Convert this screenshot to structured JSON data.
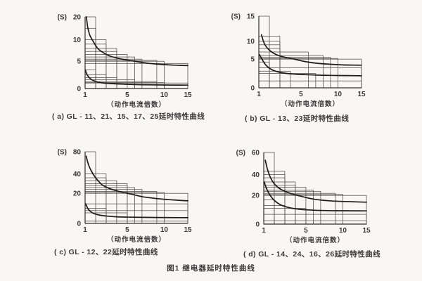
{
  "page": {
    "figure_caption": "图1  继电器延时特性曲线",
    "background": "#f9f7f6",
    "grid_color": "#4d4d4d",
    "axis_color": "#2b2b2b",
    "curve_color": "#1a1a1a",
    "text_color": "#3a3a3a"
  },
  "chart_data": [
    {
      "id": "a",
      "type": "line",
      "caption": "( a) GL - 11、21、15、17、25延时特性曲线",
      "xlabel": "（动作电流倍数）",
      "ylabel": "(S)",
      "xlim": [
        1,
        15
      ],
      "ylim": [
        0,
        20
      ],
      "x_ticks": {
        "values": [
          1,
          5,
          10,
          15
        ],
        "fractions": [
          0,
          0.41,
          0.77,
          1
        ]
      },
      "y_ticks": {
        "values": [
          0,
          5,
          10,
          20
        ],
        "fractions": [
          0,
          0.38,
          0.68,
          1
        ]
      },
      "legend": "none",
      "grid": "tolerance-boxes",
      "boxes": [
        [
          2,
          20
        ],
        [
          2,
          15
        ],
        [
          3,
          10
        ],
        [
          3,
          9
        ],
        [
          4,
          8
        ],
        [
          4,
          7.3
        ],
        [
          5,
          6.6
        ],
        [
          6,
          6
        ],
        [
          7,
          5.5
        ],
        [
          9,
          5.2
        ],
        [
          10,
          5
        ],
        [
          15,
          4.6
        ],
        [
          2,
          3.4
        ],
        [
          3,
          2.5
        ],
        [
          4,
          2
        ],
        [
          6,
          1.6
        ],
        [
          9,
          1.25
        ],
        [
          10,
          1.1
        ],
        [
          15,
          1
        ]
      ],
      "series": [
        {
          "name": "upper-limit-curve",
          "points": [
            [
              1.12,
              20
            ],
            [
              1.25,
              15.5
            ],
            [
              1.45,
              12
            ],
            [
              1.8,
              9.5
            ],
            [
              2.2,
              8
            ],
            [
              2.8,
              6.9
            ],
            [
              3.5,
              6.1
            ],
            [
              4.5,
              5.5
            ],
            [
              6,
              5
            ],
            [
              8,
              4.6
            ],
            [
              10,
              4.4
            ],
            [
              12,
              4.3
            ],
            [
              15,
              4.2
            ]
          ]
        },
        {
          "name": "lower-limit-curve",
          "points": [
            [
              1.02,
              3.4
            ],
            [
              1.2,
              2.5
            ],
            [
              1.5,
              1.8
            ],
            [
              2,
              1.3
            ],
            [
              2.6,
              1.05
            ],
            [
              3.5,
              0.9
            ],
            [
              5,
              0.78
            ],
            [
              7,
              0.7
            ],
            [
              10,
              0.65
            ],
            [
              15,
              0.62
            ]
          ]
        }
      ]
    },
    {
      "id": "b",
      "type": "line",
      "caption": "( b) GL - 13、23延时特性曲线",
      "xlabel": "（动作电流倍数）",
      "ylabel": "(S)",
      "xlim": [
        1,
        15
      ],
      "ylim": [
        0,
        15
      ],
      "x_ticks": {
        "values": [
          1,
          5,
          10,
          15
        ],
        "fractions": [
          0,
          0.41,
          0.77,
          1
        ]
      },
      "y_ticks": {
        "values": [
          0,
          5,
          10,
          15
        ],
        "fractions": [
          0,
          0.4,
          0.65,
          1
        ]
      },
      "legend": "none",
      "grid": "tolerance-boxes",
      "boxes": [
        [
          2,
          15
        ],
        [
          3,
          11
        ],
        [
          3,
          10
        ],
        [
          3,
          9
        ],
        [
          3,
          8
        ],
        [
          6,
          7
        ],
        [
          8,
          6
        ],
        [
          9,
          5.5
        ],
        [
          10,
          5.2
        ],
        [
          15,
          5
        ],
        [
          15,
          3.5
        ],
        [
          2,
          4.5
        ],
        [
          4,
          2.9
        ],
        [
          7,
          2.5
        ],
        [
          15,
          1.2
        ]
      ],
      "series": [
        {
          "name": "upper-limit-curve",
          "points": [
            [
              1.25,
              11.3
            ],
            [
              1.5,
              9.5
            ],
            [
              1.9,
              7.8
            ],
            [
              2.5,
              6.5
            ],
            [
              3.2,
              5.7
            ],
            [
              4.2,
              5.1
            ],
            [
              5.5,
              4.6
            ],
            [
              7,
              4.3
            ],
            [
              9,
              4.1
            ],
            [
              11,
              4.0
            ],
            [
              15,
              3.95
            ]
          ]
        },
        {
          "name": "lower-limit-curve",
          "points": [
            [
              1.05,
              6.3
            ],
            [
              1.3,
              5.0
            ],
            [
              1.7,
              3.9
            ],
            [
              2.3,
              3.1
            ],
            [
              3,
              2.7
            ],
            [
              4,
              2.45
            ],
            [
              5.5,
              2.3
            ],
            [
              7.5,
              2.2
            ],
            [
              10,
              2.15
            ],
            [
              15,
              2.1
            ]
          ]
        }
      ]
    },
    {
      "id": "c",
      "type": "line",
      "caption": "( c) GL - 12、22延时特性曲线",
      "xlabel": "（动作电流倍数）",
      "ylabel": "(S)",
      "xlim": [
        1,
        15
      ],
      "ylim": [
        0,
        80
      ],
      "x_ticks": {
        "values": [
          1,
          5,
          10,
          15
        ],
        "fractions": [
          0,
          0.41,
          0.77,
          1
        ]
      },
      "y_ticks": {
        "values": [
          0,
          20,
          40,
          80
        ],
        "fractions": [
          0,
          0.42,
          0.69,
          1
        ]
      },
      "legend": "none",
      "grid": "tolerance-boxes",
      "boxes": [
        [
          2,
          80
        ],
        [
          3,
          40
        ],
        [
          3,
          36
        ],
        [
          4,
          33
        ],
        [
          5,
          30
        ],
        [
          5,
          28
        ],
        [
          6,
          26
        ],
        [
          7,
          24
        ],
        [
          9,
          22
        ],
        [
          10,
          21
        ],
        [
          15,
          20
        ],
        [
          15,
          13
        ],
        [
          3,
          10
        ],
        [
          5,
          7
        ],
        [
          15,
          8.5
        ],
        [
          15,
          1.5
        ]
      ],
      "series": [
        {
          "name": "upper-limit-curve",
          "points": [
            [
              1.1,
              72
            ],
            [
              1.3,
              58
            ],
            [
              1.6,
              45
            ],
            [
              2,
              36
            ],
            [
              2.6,
              29
            ],
            [
              3.3,
              25
            ],
            [
              4.2,
              22
            ],
            [
              5.5,
              19.5
            ],
            [
              7,
              17.8
            ],
            [
              9,
              16.5
            ],
            [
              11,
              15.8
            ],
            [
              15,
              15
            ]
          ]
        },
        {
          "name": "lower-limit-curve",
          "points": [
            [
              1.05,
              13
            ],
            [
              1.3,
              9.5
            ],
            [
              1.7,
              7
            ],
            [
              2.3,
              5.6
            ],
            [
              3,
              4.9
            ],
            [
              4,
              4.4
            ],
            [
              6,
              4.1
            ],
            [
              9,
              3.9
            ],
            [
              15,
              3.8
            ]
          ]
        }
      ]
    },
    {
      "id": "d",
      "type": "line",
      "caption": "( d) GL - 14、24、16、26延时特性曲线",
      "xlabel": "（动作电流倍数）",
      "ylabel": "(S)",
      "xlim": [
        1,
        15
      ],
      "ylim": [
        0,
        60
      ],
      "x_ticks": {
        "values": [
          1,
          5,
          10,
          15
        ],
        "fractions": [
          0,
          0.41,
          0.77,
          1
        ]
      },
      "y_ticks": {
        "values": [
          0,
          20,
          40,
          60
        ],
        "fractions": [
          0,
          0.4,
          0.69,
          1
        ]
      },
      "legend": "none",
      "grid": "tolerance-boxes",
      "boxes": [
        [
          2,
          60
        ],
        [
          3,
          43
        ],
        [
          3,
          40
        ],
        [
          3,
          37
        ],
        [
          4,
          33
        ],
        [
          4,
          30
        ],
        [
          5,
          28
        ],
        [
          6,
          25
        ],
        [
          7,
          24
        ],
        [
          9,
          22
        ],
        [
          10,
          21
        ],
        [
          15,
          20
        ],
        [
          2,
          17
        ],
        [
          3,
          13
        ],
        [
          5,
          11
        ],
        [
          15,
          6.8
        ],
        [
          15,
          2.4
        ]
      ],
      "series": [
        {
          "name": "upper-limit-curve",
          "points": [
            [
              1.15,
              53
            ],
            [
              1.35,
              45
            ],
            [
              1.65,
              37
            ],
            [
              2.1,
              30
            ],
            [
              2.7,
              25.5
            ],
            [
              3.5,
              22
            ],
            [
              4.5,
              19.5
            ],
            [
              6,
              17.5
            ],
            [
              8,
              16.3
            ],
            [
              10,
              15.8
            ],
            [
              15,
              15.3
            ]
          ]
        },
        {
          "name": "lower-limit-curve",
          "points": [
            [
              1.05,
              33
            ],
            [
              1.25,
              27
            ],
            [
              1.55,
              21
            ],
            [
              2,
              16.5
            ],
            [
              2.6,
              13.5
            ],
            [
              3.4,
              11.5
            ],
            [
              4.5,
              10.3
            ],
            [
              6,
              9.7
            ],
            [
              8,
              9.4
            ],
            [
              10,
              9.3
            ],
            [
              15,
              9.2
            ]
          ]
        }
      ]
    }
  ]
}
